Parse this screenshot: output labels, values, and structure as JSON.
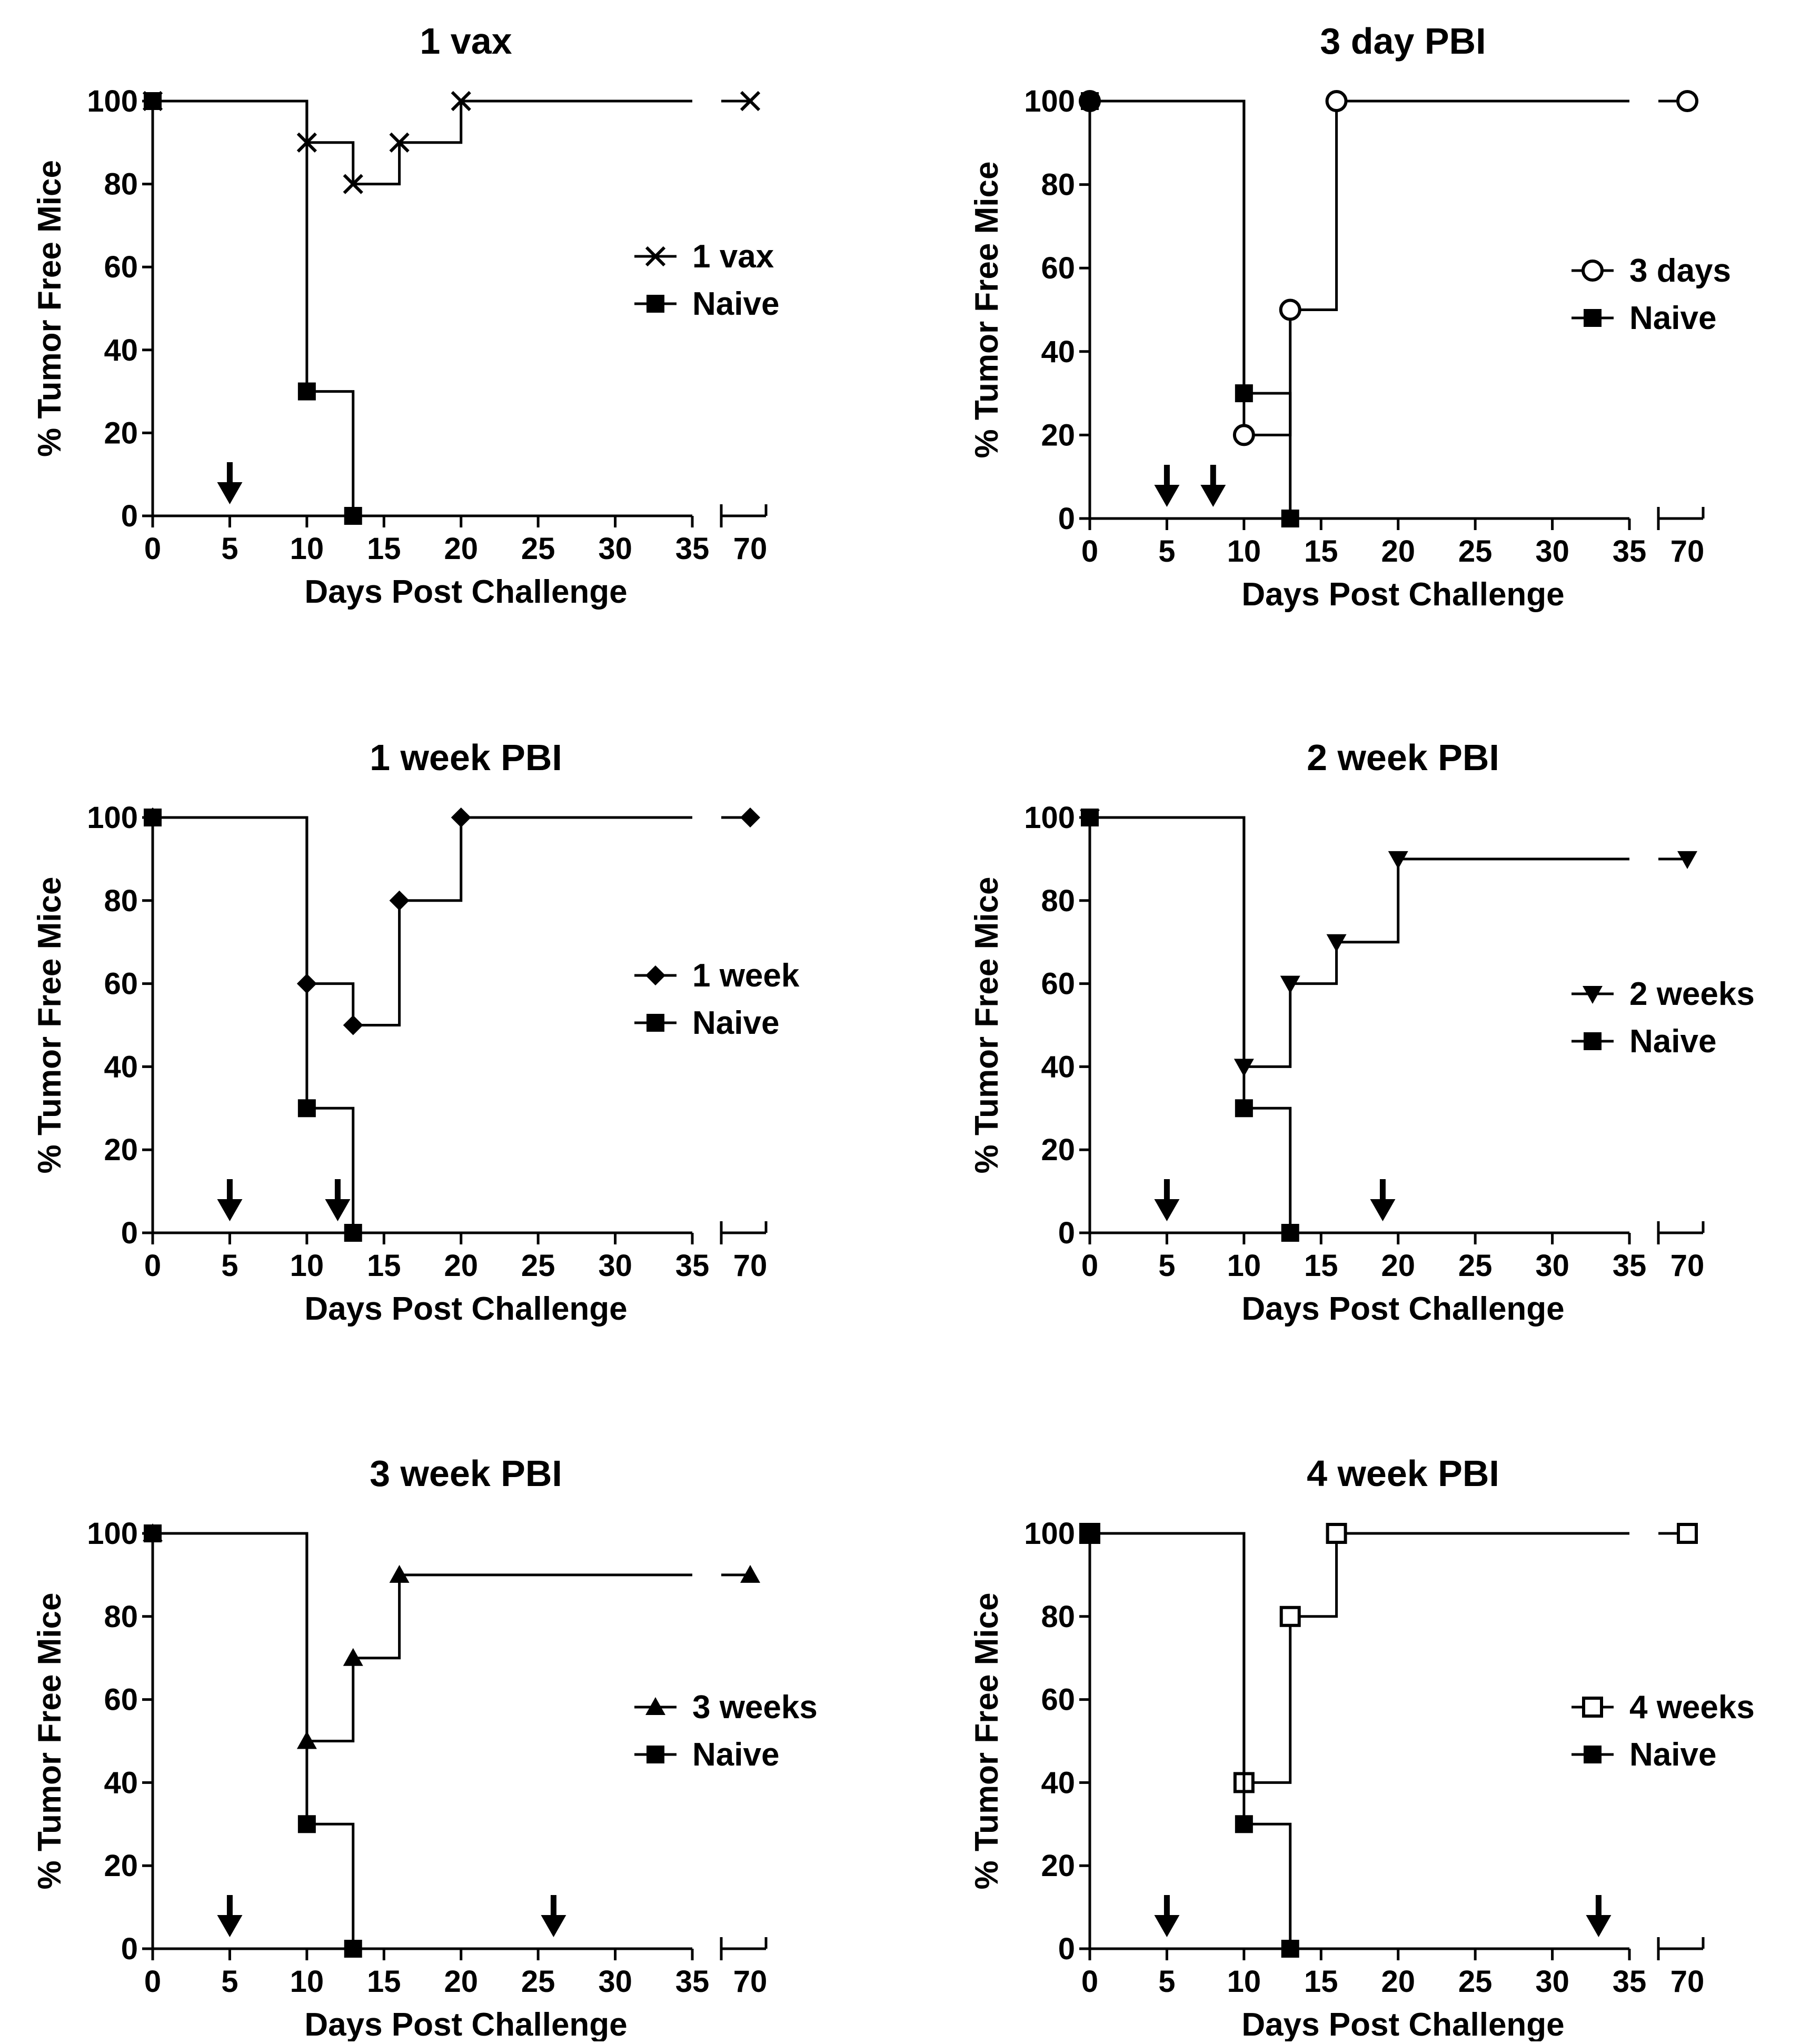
{
  "figure_title": "Survival curves: % Tumor Free Mice vs Days Post Challenge",
  "colors": {
    "ink": "#000000",
    "background": "#ffffff"
  },
  "chart_data": [
    {
      "id": "p1",
      "type": "line",
      "title": "1 vax",
      "xlabel": "Days Post Challenge",
      "ylabel": "% Tumor Free Mice",
      "xticks": [
        "0",
        "5",
        "10",
        "15",
        "20",
        "25",
        "30",
        "35",
        "70"
      ],
      "yticks": [
        "0",
        "20",
        "40",
        "60",
        "80",
        "100"
      ],
      "xlim": [
        0,
        35
      ],
      "xbreak_tick": 70,
      "ylim": [
        0,
        100
      ],
      "arrows_days": [
        5
      ],
      "series": [
        {
          "name": "1 vax",
          "marker": "x",
          "x": [
            0,
            10,
            13,
            16,
            20,
            70
          ],
          "y": [
            100,
            90,
            80,
            90,
            100,
            100
          ],
          "drawn_to": 35
        },
        {
          "name": "Naive",
          "marker": "square",
          "x": [
            0,
            10,
            13
          ],
          "y": [
            100,
            30,
            0
          ],
          "drawn_to": null
        }
      ]
    },
    {
      "id": "p2",
      "type": "line",
      "title": "3 day PBI",
      "xlabel": "Days Post Challenge",
      "ylabel": "% Tumor Free Mice",
      "xticks": [
        "0",
        "5",
        "10",
        "15",
        "20",
        "25",
        "30",
        "35",
        "70"
      ],
      "yticks": [
        "0",
        "20",
        "40",
        "60",
        "80",
        "100"
      ],
      "xlim": [
        0,
        35
      ],
      "xbreak_tick": 70,
      "ylim": [
        0,
        100
      ],
      "arrows_days": [
        5,
        8
      ],
      "series": [
        {
          "name": "3 days",
          "marker": "circle-open",
          "x": [
            0,
            10,
            13,
            16,
            70
          ],
          "y": [
            100,
            20,
            50,
            100,
            100
          ],
          "drawn_to": 35
        },
        {
          "name": "Naive",
          "marker": "square",
          "x": [
            0,
            10,
            13
          ],
          "y": [
            100,
            30,
            0
          ],
          "drawn_to": null
        }
      ]
    },
    {
      "id": "p3",
      "type": "line",
      "title": "1 week PBI",
      "xlabel": "Days Post Challenge",
      "ylabel": "% Tumor Free Mice",
      "xticks": [
        "0",
        "5",
        "10",
        "15",
        "20",
        "25",
        "30",
        "35",
        "70"
      ],
      "yticks": [
        "0",
        "20",
        "40",
        "60",
        "80",
        "100"
      ],
      "xlim": [
        0,
        35
      ],
      "xbreak_tick": 70,
      "ylim": [
        0,
        100
      ],
      "arrows_days": [
        5,
        12
      ],
      "series": [
        {
          "name": "1 week",
          "marker": "diamond",
          "x": [
            0,
            10,
            13,
            16,
            20,
            70
          ],
          "y": [
            100,
            60,
            50,
            80,
            100,
            100
          ],
          "drawn_to": 35
        },
        {
          "name": "Naive",
          "marker": "square",
          "x": [
            0,
            10,
            13
          ],
          "y": [
            100,
            30,
            0
          ],
          "drawn_to": null
        }
      ]
    },
    {
      "id": "p4",
      "type": "line",
      "title": "2 week PBI",
      "xlabel": "Days Post Challenge",
      "ylabel": "% Tumor Free Mice",
      "xticks": [
        "0",
        "5",
        "10",
        "15",
        "20",
        "25",
        "30",
        "35",
        "70"
      ],
      "yticks": [
        "0",
        "20",
        "40",
        "60",
        "80",
        "100"
      ],
      "xlim": [
        0,
        35
      ],
      "xbreak_tick": 70,
      "ylim": [
        0,
        100
      ],
      "arrows_days": [
        5,
        19
      ],
      "series": [
        {
          "name": "2 weeks",
          "marker": "triangle-down",
          "x": [
            0,
            10,
            13,
            16,
            20,
            70
          ],
          "y": [
            100,
            40,
            60,
            70,
            90,
            90
          ],
          "drawn_to": 35
        },
        {
          "name": "Naive",
          "marker": "square",
          "x": [
            0,
            10,
            13
          ],
          "y": [
            100,
            30,
            0
          ],
          "drawn_to": null
        }
      ]
    },
    {
      "id": "p5",
      "type": "line",
      "title": "3 week PBI",
      "xlabel": "Days Post Challenge",
      "ylabel": "% Tumor Free Mice",
      "xticks": [
        "0",
        "5",
        "10",
        "15",
        "20",
        "25",
        "30",
        "35",
        "70"
      ],
      "yticks": [
        "0",
        "20",
        "40",
        "60",
        "80",
        "100"
      ],
      "xlim": [
        0,
        35
      ],
      "xbreak_tick": 70,
      "ylim": [
        0,
        100
      ],
      "arrows_days": [
        5,
        26
      ],
      "series": [
        {
          "name": "3 weeks",
          "marker": "triangle-up",
          "x": [
            0,
            10,
            13,
            16,
            70
          ],
          "y": [
            100,
            50,
            70,
            90,
            90
          ],
          "drawn_to": 35
        },
        {
          "name": "Naive",
          "marker": "square",
          "x": [
            0,
            10,
            13
          ],
          "y": [
            100,
            30,
            0
          ],
          "drawn_to": null
        }
      ]
    },
    {
      "id": "p6",
      "type": "line",
      "title": "4 week PBI",
      "xlabel": "Days Post Challenge",
      "ylabel": "% Tumor Free Mice",
      "xticks": [
        "0",
        "5",
        "10",
        "15",
        "20",
        "25",
        "30",
        "35",
        "70"
      ],
      "yticks": [
        "0",
        "20",
        "40",
        "60",
        "80",
        "100"
      ],
      "xlim": [
        0,
        35
      ],
      "xbreak_tick": 70,
      "ylim": [
        0,
        100
      ],
      "arrows_days": [
        5,
        33
      ],
      "series": [
        {
          "name": "4 weeks",
          "marker": "square-open",
          "x": [
            0,
            10,
            13,
            16,
            70
          ],
          "y": [
            100,
            40,
            80,
            100,
            100
          ],
          "drawn_to": 35
        },
        {
          "name": "Naive",
          "marker": "square",
          "x": [
            0,
            10,
            13
          ],
          "y": [
            100,
            30,
            0
          ],
          "drawn_to": null
        }
      ]
    }
  ]
}
